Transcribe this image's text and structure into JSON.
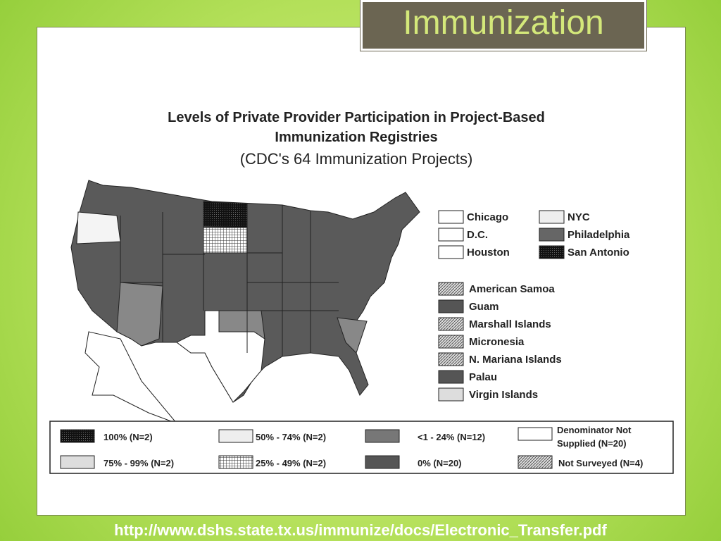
{
  "slide": {
    "title": "Immunization",
    "url": "http://www.dshs.state.tx.us/immunize/docs/Electronic_Transfer.pdf"
  },
  "figure": {
    "title": [
      "Levels of Private Provider Participation in Project-Based",
      "Immunization Registries"
    ],
    "subtitle": "(CDC's 64 Immunization Projects)",
    "city_legend": [
      "Chicago",
      "D.C.",
      "Houston",
      "NYC",
      "Philadelphia",
      "San Antonio"
    ],
    "territory_legend": [
      "American Samoa",
      "Guam",
      "Marshall Islands",
      "Micronesia",
      "N. Mariana Islands",
      "Palau",
      "Virgin Islands"
    ],
    "key": [
      "100%   (N=2)",
      "75% - 99%   (N=2)",
      "50% - 74% (N=2)",
      "25% - 49% (N=2)",
      "<1 - 24% (N=12)",
      "0% (N=20)",
      "Denominator Not",
      "Supplied (N=20)",
      "Not Surveyed (N=4)"
    ]
  }
}
